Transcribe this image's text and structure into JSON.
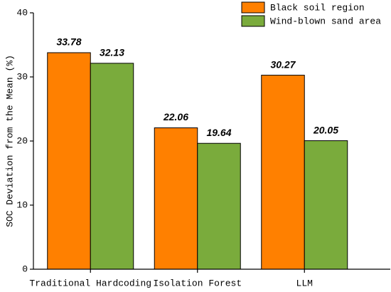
{
  "chart_data": {
    "type": "bar",
    "y_label": "SOC Deviation from the Mean (%)",
    "categories": [
      "Traditional Hardcoding",
      "Isolation Forest",
      "LLM"
    ],
    "series": [
      {
        "name": "Black soil region",
        "color": "#ff8000",
        "values": [
          33.78,
          22.06,
          30.27
        ]
      },
      {
        "name": "Wind-blown sand area",
        "color": "#7aab3c",
        "values": [
          32.13,
          19.64,
          20.05
        ]
      }
    ],
    "ylim": [
      0,
      40
    ],
    "yticks": [
      0,
      10,
      20,
      30,
      40
    ],
    "legend": "upper right"
  }
}
